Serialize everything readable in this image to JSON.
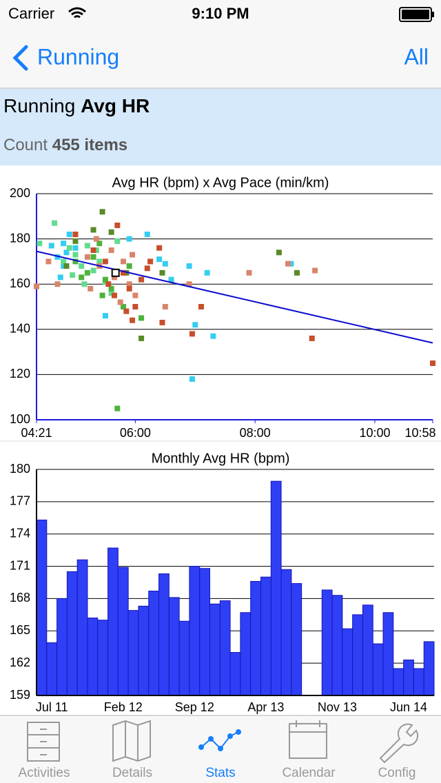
{
  "status_bar": {
    "carrier": "Carrier",
    "time": "9:10 PM"
  },
  "nav": {
    "back": "Running",
    "action": "All"
  },
  "header": {
    "prefix": "Running",
    "title": "Avg HR",
    "count_label": "Count",
    "count": "455 items"
  },
  "chart_data": [
    {
      "type": "scatter",
      "title": "Avg HR (bpm) x Avg Pace (min/km)",
      "xlim": [
        4.35,
        10.967
      ],
      "xticks": [
        {
          "value": 4.35,
          "label": "04:21"
        },
        {
          "value": 6,
          "label": "06:00"
        },
        {
          "value": 8,
          "label": "08:00"
        },
        {
          "value": 10,
          "label": "10:00"
        },
        {
          "value": 10.967,
          "label": "10:58"
        }
      ],
      "ylim": [
        100,
        200
      ],
      "yticks": [
        100,
        120,
        140,
        160,
        180,
        200
      ],
      "grid": true,
      "series": [
        {
          "color": "#35cdf2",
          "x": [
            4.6,
            4.8,
            4.9,
            5.0,
            4.7,
            4.8,
            4.75,
            5.9,
            6.2,
            6.4,
            6.9,
            7.2,
            7.0,
            6.95,
            7.3,
            5.5,
            6.6,
            6.5,
            8.6,
            4.85
          ],
          "values": [
            177,
            178,
            182,
            176,
            172,
            168,
            163,
            180,
            182,
            171,
            168,
            165,
            142,
            118,
            137,
            146,
            162,
            169,
            169,
            174
          ]
        },
        {
          "color": "#62dc8e",
          "x": [
            4.4,
            4.65,
            4.9,
            5.0,
            5.1,
            5.2,
            5.4,
            5.3,
            4.95,
            5.5,
            5.6,
            5.15,
            5.7,
            5.35,
            4.8
          ],
          "values": [
            178,
            187,
            176,
            173,
            168,
            177,
            170,
            166,
            164,
            161,
            156,
            160,
            179,
            175,
            170
          ]
        },
        {
          "color": "#4cb33c",
          "x": [
            5.0,
            5.2,
            5.4,
            5.5,
            5.6,
            5.8,
            5.3,
            5.1,
            5.7,
            5.9,
            6.1,
            5.45
          ],
          "values": [
            170,
            165,
            178,
            162,
            158,
            150,
            172,
            163,
            105,
            168,
            145,
            155
          ]
        },
        {
          "color": "#5a8a28",
          "x": [
            5.45,
            5.3,
            5.6,
            6.1,
            6.45,
            8.4,
            8.7,
            5.0,
            5.85,
            4.85
          ],
          "values": [
            192,
            184,
            183,
            136,
            165,
            174,
            165,
            179,
            165,
            168
          ]
        },
        {
          "color": "#d9856b",
          "x": [
            4.35,
            4.55,
            4.7,
            5.0,
            5.2,
            5.4,
            5.6,
            5.8,
            5.9,
            6.0,
            6.5,
            6.9,
            7.9,
            8.55,
            9.0,
            5.25,
            5.65,
            5.95,
            5.75,
            5.35
          ],
          "values": [
            159,
            170,
            160,
            182,
            172,
            168,
            175,
            170,
            160,
            155,
            150,
            160,
            165,
            169,
            166,
            158,
            163,
            173,
            152,
            180
          ]
        },
        {
          "color": "#c74f2b",
          "x": [
            5.0,
            5.3,
            5.5,
            5.7,
            5.8,
            5.9,
            6.0,
            6.1,
            6.2,
            6.4,
            6.45,
            5.85,
            6.95,
            7.1,
            8.95,
            10.967,
            5.55,
            5.95,
            6.25,
            5.65
          ],
          "values": [
            182,
            175,
            170,
            186,
            165,
            158,
            150,
            162,
            167,
            176,
            143,
            148,
            138,
            150,
            136,
            125,
            160,
            144,
            170,
            155
          ]
        }
      ],
      "trend": {
        "color": "#0a0ad0",
        "x": [
          4.35,
          10.967
        ],
        "values": [
          174.5,
          134
        ]
      },
      "marker": {
        "x": 5.67,
        "value": 165
      }
    },
    {
      "type": "bar",
      "title": "Monthly Avg HR (bpm)",
      "color": "#2f3ff5",
      "ylim": [
        159,
        180
      ],
      "yticks": [
        159,
        162,
        165,
        168,
        171,
        174,
        177,
        180
      ],
      "grid": true,
      "categories": [
        null,
        "Jul 11",
        null,
        null,
        null,
        null,
        null,
        null,
        "Feb 12",
        null,
        null,
        null,
        null,
        null,
        null,
        "Sep 12",
        null,
        null,
        null,
        null,
        null,
        null,
        "Apr 13",
        null,
        null,
        null,
        null,
        null,
        null,
        "Nov 13",
        null,
        null,
        null,
        null,
        null,
        null,
        "Jun 14",
        null,
        null
      ],
      "values": [
        175.3,
        163.9,
        168.0,
        170.5,
        171.6,
        166.2,
        166.0,
        172.7,
        170.9,
        166.9,
        167.3,
        168.7,
        170.3,
        168.1,
        165.9,
        171.0,
        170.8,
        167.5,
        167.8,
        163.0,
        166.7,
        169.6,
        170.0,
        178.9,
        170.7,
        169.4,
        null,
        null,
        168.8,
        168.3,
        165.2,
        166.5,
        167.4,
        163.8,
        166.7,
        161.5,
        162.3,
        161.5,
        164.0
      ]
    }
  ],
  "tabs": {
    "items": [
      "Activities",
      "Details",
      "Stats",
      "Calendar",
      "Config"
    ],
    "active": 2
  }
}
